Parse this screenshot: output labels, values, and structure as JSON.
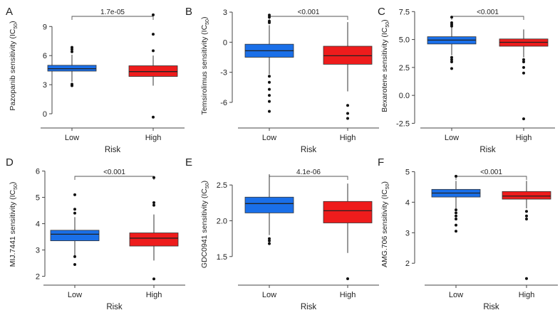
{
  "figure": {
    "low_color": "#1a6fe8",
    "high_color": "#ee1c1c"
  },
  "chart_data": [
    {
      "panel": "A",
      "type": "box",
      "ylabel_main": "Pazopanib sensitivity (IC",
      "ylabel_sub": "50",
      "ylabel_end": ")",
      "xlabel": "Risk",
      "categories": [
        "Low",
        "High"
      ],
      "yticks": [
        0,
        3,
        6,
        9
      ],
      "ylim": [
        -1.1,
        11.0
      ],
      "pvalue": "1.7e-05",
      "boxes": [
        {
          "name": "Low",
          "q1": 4.4,
          "median": 4.65,
          "q3": 5.0,
          "whisker_low": 3.3,
          "whisker_high": 6.1,
          "outliers": [
            2.9,
            3.05,
            6.4,
            6.65,
            6.85
          ]
        },
        {
          "name": "High",
          "q1": 3.85,
          "median": 4.35,
          "q3": 4.95,
          "whisker_low": 2.9,
          "whisker_high": 6.0,
          "outliers": [
            -0.35,
            6.5,
            8.2,
            10.2
          ]
        }
      ]
    },
    {
      "panel": "B",
      "type": "box",
      "ylabel_main": "Temsirolimus sensitivity (IC",
      "ylabel_sub": "50",
      "ylabel_end": ")",
      "xlabel": "Risk",
      "categories": [
        "Low",
        "High"
      ],
      "yticks": [
        -6,
        -3,
        0,
        3
      ],
      "ylim": [
        -8.2,
        3.5
      ],
      "pvalue": "<0.001",
      "boxes": [
        {
          "name": "Low",
          "q1": -1.5,
          "median": -0.85,
          "q3": -0.2,
          "whisker_low": -3.2,
          "whisker_high": 1.7,
          "outliers": [
            -3.4,
            -4.0,
            -4.7,
            -5.3,
            -5.9,
            -6.9,
            1.95,
            2.1,
            2.5,
            2.7
          ]
        },
        {
          "name": "High",
          "q1": -2.2,
          "median": -1.35,
          "q3": -0.4,
          "whisker_low": -4.9,
          "whisker_high": 2.0,
          "outliers": [
            -6.3,
            -7.1,
            -7.6
          ]
        }
      ]
    },
    {
      "panel": "C",
      "type": "box",
      "ylabel_main": "Bexarotene sensitivity (IC",
      "ylabel_sub": "50",
      "ylabel_end": ")",
      "xlabel": "Risk",
      "categories": [
        "Low",
        "High"
      ],
      "yticks": [
        -2.5,
        0.0,
        2.5,
        5.0,
        7.5
      ],
      "ylim": [
        -2.6,
        7.9
      ],
      "pvalue": "<0.001",
      "boxes": [
        {
          "name": "Low",
          "q1": 4.6,
          "median": 4.95,
          "q3": 5.25,
          "whisker_low": 3.6,
          "whisker_high": 6.1,
          "outliers": [
            2.4,
            3.0,
            3.2,
            3.4,
            6.2,
            6.35,
            6.5,
            7.0
          ]
        },
        {
          "name": "High",
          "q1": 4.4,
          "median": 4.75,
          "q3": 5.05,
          "whisker_low": 3.4,
          "whisker_high": 5.9,
          "outliers": [
            -2.1,
            2.0,
            2.5,
            3.0,
            3.2
          ]
        }
      ]
    },
    {
      "panel": "D",
      "type": "box",
      "ylabel_main": "MIJ.7441 sensitivity (IC",
      "ylabel_sub": "50",
      "ylabel_end": ")",
      "xlabel": "Risk",
      "categories": [
        "Low",
        "High"
      ],
      "yticks": [
        2,
        3,
        4,
        5,
        6
      ],
      "ylim": [
        1.8,
        6.15
      ],
      "pvalue": "<0.001",
      "boxes": [
        {
          "name": "Low",
          "q1": 3.35,
          "median": 3.6,
          "q3": 3.75,
          "whisker_low": 2.8,
          "whisker_high": 4.25,
          "outliers": [
            2.45,
            2.75,
            4.4,
            4.55,
            5.1
          ]
        },
        {
          "name": "High",
          "q1": 3.15,
          "median": 3.45,
          "q3": 3.65,
          "whisker_low": 2.6,
          "whisker_high": 4.35,
          "outliers": [
            1.9,
            4.7,
            4.8,
            5.75
          ]
        }
      ]
    },
    {
      "panel": "E",
      "type": "box",
      "ylabel_main": "GDC0941 sensitivity (IC",
      "ylabel_sub": "50",
      "ylabel_end": ")",
      "xlabel": "Risk",
      "categories": [
        "Low",
        "High"
      ],
      "yticks": [
        1.5,
        2.0,
        2.5
      ],
      "ylim": [
        1.15,
        2.75
      ],
      "pvalue": "4.1e-06",
      "boxes": [
        {
          "name": "Low",
          "q1": 2.11,
          "median": 2.24,
          "q3": 2.33,
          "whisker_low": 1.8,
          "whisker_high": 2.65,
          "outliers": [
            1.68,
            1.72,
            1.75
          ]
        },
        {
          "name": "High",
          "q1": 1.97,
          "median": 2.14,
          "q3": 2.27,
          "whisker_low": 1.55,
          "whisker_high": 2.52,
          "outliers": [
            1.19
          ]
        }
      ]
    },
    {
      "panel": "F",
      "type": "box",
      "ylabel_main": "AMG.706 sensitivity (IC",
      "ylabel_sub": "50",
      "ylabel_end": ")",
      "xlabel": "Risk",
      "categories": [
        "Low",
        "High"
      ],
      "yticks": [
        2,
        3,
        4,
        5
      ],
      "ylim": [
        1.4,
        5.15
      ],
      "pvalue": "<0.001",
      "boxes": [
        {
          "name": "Low",
          "q1": 4.17,
          "median": 4.3,
          "q3": 4.42,
          "whisker_low": 3.8,
          "whisker_high": 4.7,
          "outliers": [
            3.05,
            3.25,
            3.45,
            3.55,
            3.65,
            3.75,
            4.85
          ]
        },
        {
          "name": "High",
          "q1": 4.1,
          "median": 4.2,
          "q3": 4.35,
          "whisker_low": 3.8,
          "whisker_high": 4.7,
          "outliers": [
            1.5,
            3.45,
            3.55,
            3.7
          ]
        }
      ]
    }
  ]
}
